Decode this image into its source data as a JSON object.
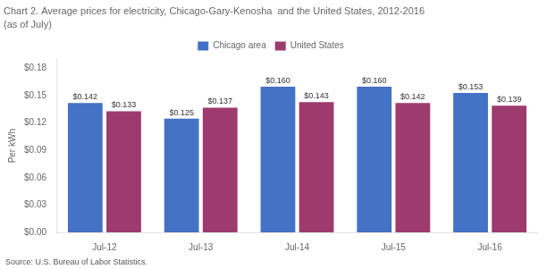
{
  "chart_data": {
    "type": "bar",
    "title": "Chart 2. Average prices for electricity, Chicago-Gary-Kenosha  and the United States, 2012-2016",
    "subtitle": "(as of July)",
    "y_label": "Per kWh",
    "annotations": [
      "Source: U.S. Bureau of Labor Statistics."
    ],
    "categories": [
      "Jul-12",
      "Jul-13",
      "Jul-14",
      "Jul-15",
      "Jul-16"
    ],
    "series": [
      {
        "name": "Chicago area",
        "color": "#4472C4",
        "values": [
          0.142,
          0.125,
          0.16,
          0.16,
          0.153
        ],
        "value_labels": [
          "$0.142",
          "$0.125",
          "$0.160",
          "$0.160",
          "$0.153"
        ]
      },
      {
        "name": "United States",
        "color": "#9E3B6E",
        "values": [
          0.133,
          0.137,
          0.143,
          0.142,
          0.139
        ],
        "value_labels": [
          "$0.133",
          "$0.137",
          "$0.143",
          "$0.142",
          "$0.139"
        ]
      }
    ],
    "ylim": [
      0,
      0.19
    ],
    "yticks": [
      {
        "value": 0.0,
        "label": "$0.00"
      },
      {
        "value": 0.03,
        "label": "$0.03"
      },
      {
        "value": 0.06,
        "label": "$0.06"
      },
      {
        "value": 0.09,
        "label": "$0.09"
      },
      {
        "value": 0.12,
        "label": "$0.12"
      },
      {
        "value": 0.15,
        "label": "$0.15"
      },
      {
        "value": 0.18,
        "label": "$0.18"
      }
    ],
    "data_labels": true,
    "legend": "top",
    "grid": false
  }
}
